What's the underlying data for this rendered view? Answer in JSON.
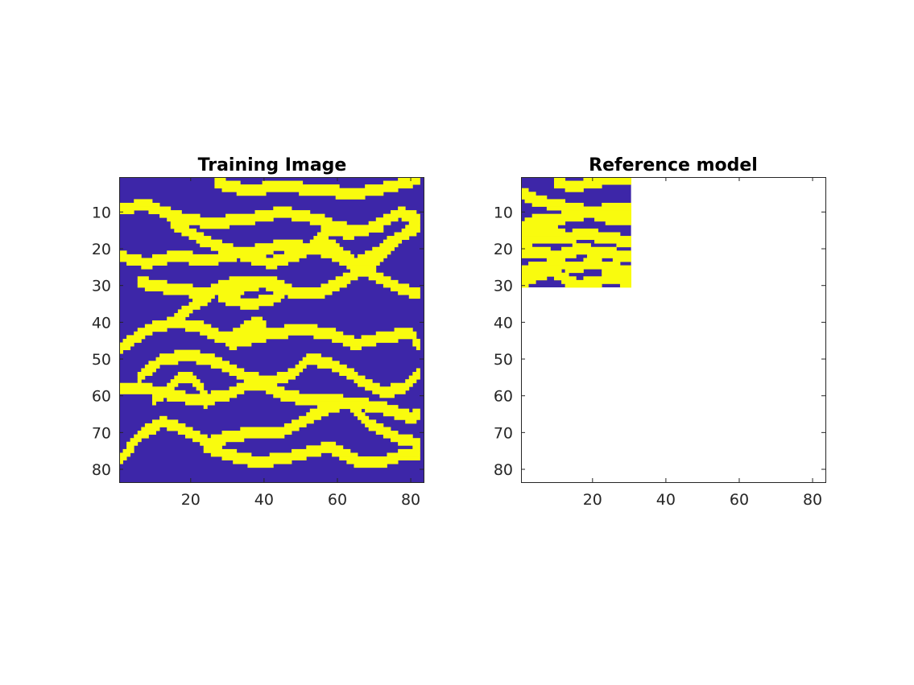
{
  "figure": {
    "background": "#ffffff",
    "colormap": {
      "channel": "#3d26a8",
      "background": "#f9fb0e"
    }
  },
  "chart_data": [
    {
      "type": "heatmap",
      "title": "Training Image",
      "xlabel": "",
      "ylabel": "",
      "grid": false,
      "xlim": [
        0.5,
        83.5
      ],
      "ylim": [
        0.5,
        83.5
      ],
      "y_reversed": true,
      "xticks": [
        20,
        40,
        60,
        80
      ],
      "xtick_labels": [
        "20",
        "40",
        "60",
        "80"
      ],
      "yticks": [
        10,
        20,
        30,
        40,
        50,
        60,
        70,
        80
      ],
      "ytick_labels": [
        "10",
        "20",
        "30",
        "40",
        "50",
        "60",
        "70",
        "80"
      ],
      "value_meaning": {
        "0": "dark blue",
        "1": "yellow"
      },
      "grid_size": [
        83,
        83
      ],
      "channel_width": 2,
      "channels": [
        {
          "x": [
            27,
            35,
            45,
            55,
            65,
            75,
            82
          ],
          "y": [
            2,
            4,
            3,
            4,
            5,
            3,
            1
          ]
        },
        {
          "x": [
            1,
            8,
            15,
            25,
            35,
            45,
            55,
            63,
            70,
            77,
            82
          ],
          "y": [
            9,
            8,
            11,
            13,
            12,
            10,
            12,
            16,
            14,
            10,
            12
          ]
        },
        {
          "x": [
            1,
            8,
            15,
            25,
            35,
            45,
            55,
            62,
            70,
            77,
            82
          ],
          "y": [
            22,
            24,
            22,
            23,
            21,
            19,
            20,
            23,
            27,
            31,
            32
          ]
        },
        {
          "x": [
            15,
            22,
            32,
            42,
            50,
            57,
            65,
            72,
            78,
            82
          ],
          "y": [
            13,
            17,
            21,
            24,
            21,
            18,
            24,
            20,
            16,
            14
          ]
        },
        {
          "x": [
            50,
            53,
            56,
            60,
            65,
            72
          ],
          "y": [
            21,
            19,
            16,
            14,
            15,
            14
          ]
        },
        {
          "x": [
            6,
            15,
            25,
            32,
            40,
            48,
            55,
            63,
            70,
            78,
            82
          ],
          "y": [
            29,
            31,
            32,
            29,
            29,
            32,
            32,
            28,
            24,
            16,
            13
          ]
        },
        {
          "x": [
            28,
            35,
            42,
            46,
            42,
            35,
            28
          ],
          "y": [
            33,
            30,
            29,
            31,
            34,
            35,
            33
          ]
        },
        {
          "x": [
            1,
            8,
            15,
            22,
            28,
            35,
            42,
            50,
            58,
            65,
            72,
            80,
            82
          ],
          "y": [
            47,
            42,
            40,
            41,
            44,
            45,
            43,
            42,
            43,
            46,
            44,
            43,
            46
          ]
        },
        {
          "x": [
            15,
            20,
            25,
            28
          ],
          "y": [
            40,
            36,
            33,
            30
          ]
        },
        {
          "x": [
            30,
            34,
            38,
            40,
            36,
            31
          ],
          "y": [
            45,
            42,
            40,
            41,
            44,
            46
          ]
        },
        {
          "x": [
            6,
            12,
            20,
            28,
            35,
            42,
            48,
            52,
            58,
            65,
            72,
            78,
            82
          ],
          "y": [
            55,
            50,
            49,
            51,
            55,
            56,
            54,
            50,
            51,
            55,
            59,
            58,
            54
          ]
        },
        {
          "x": [
            1,
            8,
            15,
            22,
            30,
            35,
            40,
            46,
            52,
            58,
            64,
            72,
            80,
            82
          ],
          "y": [
            58,
            58,
            60,
            61,
            60,
            57,
            57,
            60,
            61,
            61,
            62,
            63,
            66,
            65
          ]
        },
        {
          "x": [
            1,
            6,
            12,
            18,
            25,
            30,
            38,
            45,
            52,
            58,
            63,
            68,
            75,
            82
          ],
          "y": [
            77,
            71,
            67,
            69,
            73,
            71,
            70,
            70,
            66,
            63,
            62,
            67,
            71,
            73
          ]
        },
        {
          "x": [
            24,
            30,
            38,
            46,
            53,
            58,
            62,
            66,
            72,
            78,
            82
          ],
          "y": [
            74,
            76,
            78,
            77,
            75,
            74,
            76,
            78,
            78,
            76,
            76
          ]
        },
        {
          "x": [
            10,
            14,
            17,
            20,
            23,
            24
          ],
          "y": [
            61,
            58,
            55,
            55,
            58,
            62
          ]
        }
      ]
    },
    {
      "type": "heatmap",
      "title": "Reference model",
      "xlabel": "",
      "ylabel": "",
      "grid": false,
      "xlim": [
        0.5,
        83.5
      ],
      "ylim": [
        0.5,
        83.5
      ],
      "y_reversed": true,
      "xticks": [
        20,
        40,
        60,
        80
      ],
      "xtick_labels": [
        "20",
        "40",
        "60",
        "80"
      ],
      "yticks": [
        10,
        20,
        30,
        40,
        50,
        60,
        70,
        80
      ],
      "ytick_labels": [
        "10",
        "20",
        "30",
        "40",
        "50",
        "60",
        "70",
        "80"
      ],
      "value_meaning": {
        "0": "dark blue",
        "1": "yellow"
      },
      "data_extent": {
        "x": [
          1,
          30
        ],
        "y": [
          1,
          30
        ]
      },
      "grid_size": [
        30,
        30
      ],
      "channel_width": 2,
      "channels": [
        {
          "x": [
            10,
            15,
            20,
            25,
            30
          ],
          "y": [
            2,
            3,
            2,
            1,
            1
          ]
        },
        {
          "x": [
            1,
            5,
            10,
            15,
            20,
            25,
            30
          ],
          "y": [
            5,
            7,
            8,
            9,
            10,
            9,
            9
          ]
        },
        {
          "x": [
            1,
            5,
            10,
            14,
            20,
            25,
            30
          ],
          "y": [
            14,
            12,
            12,
            11,
            10,
            12,
            12
          ]
        },
        {
          "x": [
            1,
            4,
            8,
            12
          ],
          "y": [
            17,
            15,
            15,
            16
          ]
        },
        {
          "x": [
            1,
            6,
            12,
            18,
            24,
            30
          ],
          "y": [
            18,
            17,
            17,
            16,
            17,
            18
          ]
        },
        {
          "x": [
            1,
            6,
            11,
            16,
            22,
            30
          ],
          "y": [
            21,
            21,
            22,
            20,
            21,
            22
          ]
        },
        {
          "x": [
            1,
            5,
            10,
            15,
            20,
            25,
            30
          ],
          "y": [
            26,
            25,
            24,
            25,
            24,
            25,
            26
          ]
        },
        {
          "x": [
            1,
            5,
            9,
            12,
            16,
            20,
            25,
            30
          ],
          "y": [
            29,
            27,
            26,
            28,
            30,
            29,
            28,
            29
          ]
        }
      ]
    }
  ]
}
